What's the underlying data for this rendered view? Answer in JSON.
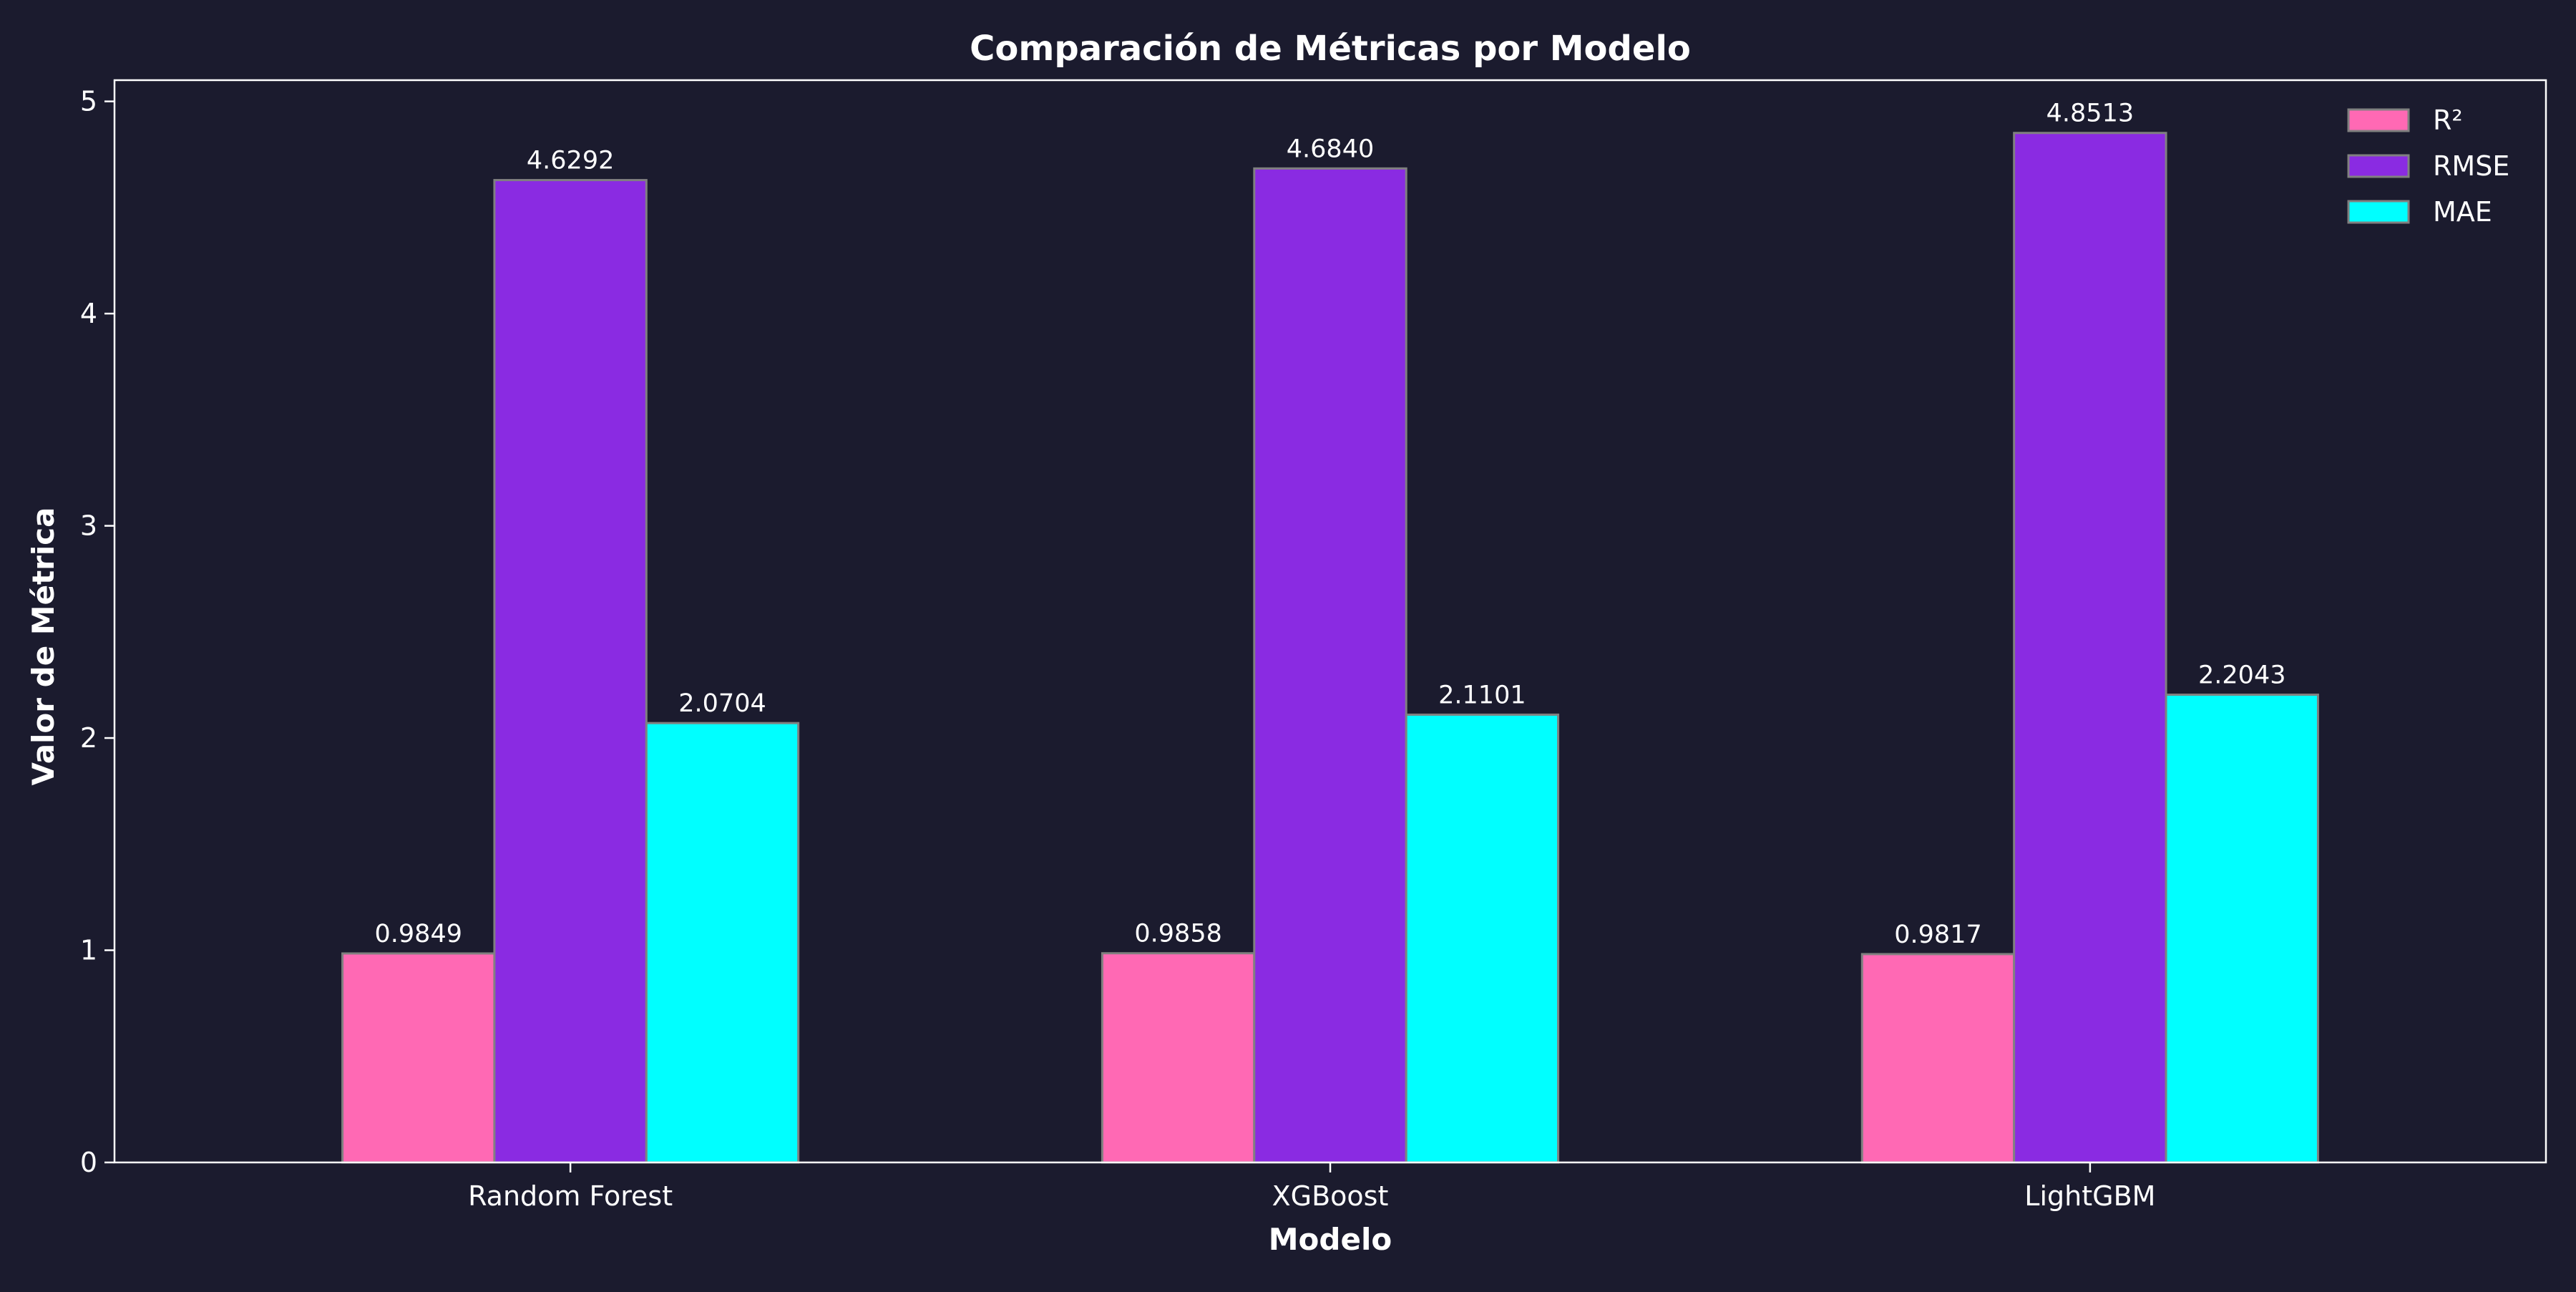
{
  "chart_data": {
    "type": "bar",
    "title": "Comparación de Métricas por Modelo",
    "xlabel": "Modelo",
    "ylabel": "Valor de Métrica",
    "categories": [
      "Random Forest",
      "XGBoost",
      "LightGBM"
    ],
    "series": [
      {
        "name": "R²",
        "color": "#ff69b4",
        "values": [
          0.9849,
          0.9858,
          0.9817
        ],
        "labels": [
          "0.9849",
          "0.9858",
          "0.9817"
        ]
      },
      {
        "name": "RMSE",
        "color": "#8a2be2",
        "values": [
          4.6292,
          4.684,
          4.8513
        ],
        "labels": [
          "4.6292",
          "4.6840",
          "4.8513"
        ]
      },
      {
        "name": "MAE",
        "color": "#00ffff",
        "values": [
          2.0704,
          2.1101,
          2.2043
        ],
        "labels": [
          "2.0704",
          "2.1101",
          "2.2043"
        ]
      }
    ],
    "ylim": [
      0,
      5.1
    ],
    "yticks": [
      "0",
      "1",
      "2",
      "3",
      "4",
      "5"
    ],
    "grid": false,
    "legend_position": "top-right",
    "background_color": "#1b1b2e",
    "axis_color": "#ffffff",
    "bar_edge_color": "#808080"
  }
}
